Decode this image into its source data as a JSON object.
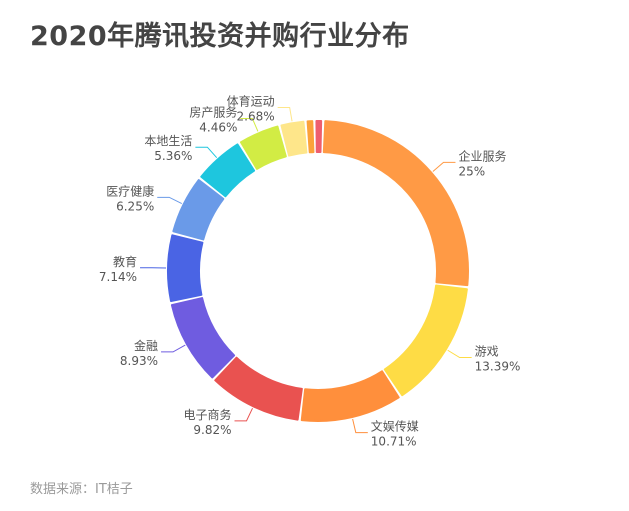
{
  "header": {
    "title": "2020年腾讯投资并购行业分布"
  },
  "footer": {
    "source": "数据来源：IT桔子"
  },
  "chart_data": {
    "type": "pie",
    "title": "2020年腾讯投资并购行业分布",
    "donut": true,
    "categories": [
      "企业服务",
      "游戏",
      "文娱传媒",
      "电子商务",
      "金融",
      "教育",
      "医疗健康",
      "本地生活",
      "房产服务",
      "体育运动",
      "",
      ""
    ],
    "values": [
      25,
      13.39,
      10.71,
      9.82,
      8.93,
      7.14,
      6.25,
      5.36,
      4.46,
      2.68,
      0.9,
      0.9
    ],
    "value_labels": [
      "25%",
      "13.39%",
      "10.71%",
      "9.82%",
      "8.93%",
      "7.14%",
      "6.25%",
      "5.36%",
      "4.46%",
      "2.68%",
      "",
      ""
    ],
    "colors": [
      "#FF9A45",
      "#FEDC45",
      "#FF8F3C",
      "#E95250",
      "#6F5CE0",
      "#4A64E4",
      "#6A9AE8",
      "#1EC6DE",
      "#D2EC44",
      "#FEE68A",
      "#FBA23A",
      "#EE5E6E",
      "#57A8EE"
    ],
    "legend": "none"
  }
}
